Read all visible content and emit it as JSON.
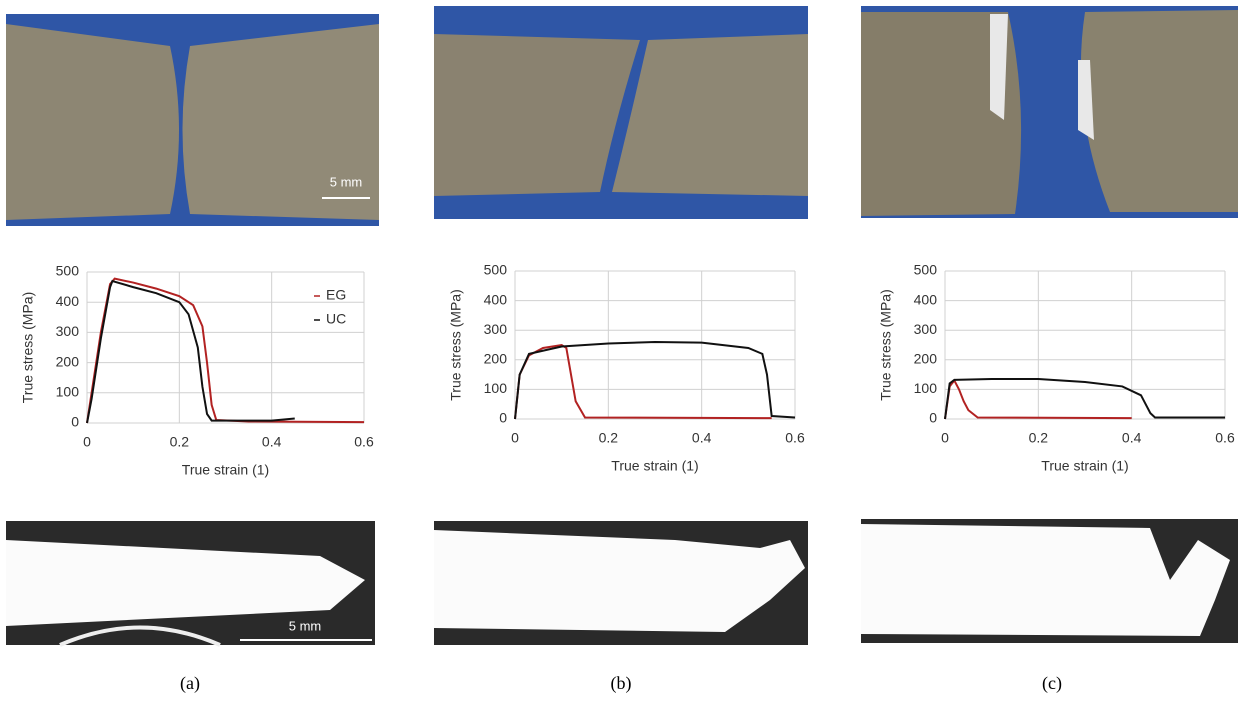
{
  "panels": [
    {
      "label": "(a)",
      "scale_bar": "5 mm",
      "section_scale_bar": "5 mm"
    },
    {
      "label": "(b)"
    },
    {
      "label": "(c)"
    }
  ],
  "chart_data": [
    {
      "type": "line",
      "xlabel": "True strain (1)",
      "ylabel": "True stress (MPa)",
      "xlim": [
        0,
        0.6
      ],
      "xticks": [
        0,
        0.2,
        0.4,
        0.6
      ],
      "ylim": [
        0,
        500
      ],
      "yticks": [
        0,
        100,
        200,
        300,
        400,
        500
      ],
      "grid": true,
      "legend": "top-right",
      "series": [
        {
          "name": "EG",
          "color": "#b22222",
          "x": [
            0,
            0.01,
            0.03,
            0.05,
            0.06,
            0.1,
            0.15,
            0.2,
            0.23,
            0.25,
            0.26,
            0.27,
            0.28,
            0.35,
            0.6
          ],
          "values": [
            0,
            100,
            300,
            460,
            478,
            465,
            445,
            420,
            390,
            320,
            200,
            60,
            10,
            5,
            3
          ]
        },
        {
          "name": "UC",
          "color": "#111111",
          "x": [
            0,
            0.01,
            0.03,
            0.05,
            0.055,
            0.1,
            0.15,
            0.2,
            0.22,
            0.24,
            0.25,
            0.26,
            0.27,
            0.4,
            0.45
          ],
          "values": [
            0,
            80,
            280,
            450,
            470,
            450,
            430,
            400,
            360,
            250,
            120,
            30,
            8,
            8,
            15
          ]
        }
      ]
    },
    {
      "type": "line",
      "xlabel": "True strain (1)",
      "ylabel": "True stress (MPa)",
      "xlim": [
        0,
        0.6
      ],
      "xticks": [
        0,
        0.2,
        0.4,
        0.6
      ],
      "ylim": [
        0,
        500
      ],
      "yticks": [
        0,
        100,
        200,
        300,
        400,
        500
      ],
      "grid": true,
      "series": [
        {
          "color": "#b22222",
          "x": [
            0,
            0.01,
            0.03,
            0.06,
            0.1,
            0.11,
            0.12,
            0.13,
            0.15,
            0.55
          ],
          "values": [
            0,
            150,
            215,
            240,
            250,
            240,
            150,
            60,
            5,
            3
          ]
        },
        {
          "color": "#111111",
          "x": [
            0,
            0.01,
            0.03,
            0.1,
            0.2,
            0.3,
            0.4,
            0.5,
            0.53,
            0.54,
            0.55,
            0.6
          ],
          "values": [
            0,
            150,
            220,
            245,
            255,
            260,
            258,
            240,
            220,
            150,
            10,
            5
          ]
        }
      ]
    },
    {
      "type": "line",
      "xlabel": "True strain (1)",
      "ylabel": "True stress (MPa)",
      "xlim": [
        0,
        0.6
      ],
      "xticks": [
        0,
        0.2,
        0.4,
        0.6
      ],
      "ylim": [
        0,
        500
      ],
      "yticks": [
        0,
        100,
        200,
        300,
        400,
        500
      ],
      "grid": true,
      "series": [
        {
          "color": "#b22222",
          "x": [
            0,
            0.01,
            0.02,
            0.03,
            0.04,
            0.05,
            0.07,
            0.4
          ],
          "values": [
            0,
            110,
            130,
            100,
            60,
            30,
            5,
            3
          ]
        },
        {
          "color": "#111111",
          "x": [
            0,
            0.01,
            0.02,
            0.1,
            0.2,
            0.3,
            0.38,
            0.42,
            0.44,
            0.45,
            0.6
          ],
          "values": [
            0,
            120,
            132,
            135,
            135,
            125,
            110,
            80,
            20,
            5,
            5
          ]
        }
      ]
    }
  ]
}
